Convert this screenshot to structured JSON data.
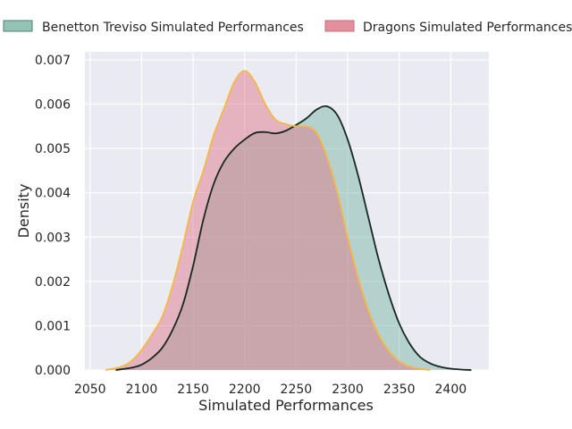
{
  "chart_data": {
    "type": "area",
    "xlabel": "Simulated Performances",
    "ylabel": "Density",
    "xlim": [
      2045,
      2437
    ],
    "ylim": [
      0,
      0.00718
    ],
    "xticks": [
      2050,
      2100,
      2150,
      2200,
      2250,
      2300,
      2350,
      2400
    ],
    "yticks": [
      0,
      0.001,
      0.002,
      0.003,
      0.004,
      0.005,
      0.006,
      0.007
    ],
    "xtick_labels": [
      "2050",
      "2100",
      "2150",
      "2200",
      "2250",
      "2300",
      "2350",
      "2400"
    ],
    "ytick_labels": [
      "0.000",
      "0.001",
      "0.002",
      "0.003",
      "0.004",
      "0.005",
      "0.006",
      "0.007"
    ],
    "grid": true,
    "legend_placement": "top, above plot",
    "series": [
      {
        "name": "Benetton Treviso Simulated Performances",
        "fill_color": "#7fb8a8",
        "line_color": "#16281f",
        "x": [
          2075,
          2090,
          2100,
          2110,
          2120,
          2130,
          2140,
          2150,
          2160,
          2170,
          2180,
          2190,
          2200,
          2210,
          2220,
          2230,
          2240,
          2250,
          2260,
          2270,
          2280,
          2290,
          2300,
          2310,
          2320,
          2330,
          2340,
          2350,
          2360,
          2370,
          2380,
          2390,
          2400,
          2410,
          2420
        ],
        "y": [
          0.0,
          5e-05,
          0.00012,
          0.00027,
          0.0005,
          0.0009,
          0.00147,
          0.00235,
          0.0034,
          0.0042,
          0.0047,
          0.005,
          0.0052,
          0.00535,
          0.00537,
          0.00534,
          0.0054,
          0.00553,
          0.00568,
          0.00588,
          0.00595,
          0.00575,
          0.0052,
          0.0044,
          0.00345,
          0.0025,
          0.0017,
          0.00105,
          0.0006,
          0.0003,
          0.00015,
          7e-05,
          3e-05,
          1e-05,
          0.0
        ]
      },
      {
        "name": "Dragons Simulated Performances",
        "fill_color": "#dd7c8c",
        "line_color": "#f5b942",
        "x": [
          2065,
          2080,
          2090,
          2100,
          2110,
          2120,
          2130,
          2140,
          2150,
          2160,
          2170,
          2180,
          2190,
          2200,
          2210,
          2220,
          2230,
          2240,
          2250,
          2260,
          2270,
          2280,
          2290,
          2300,
          2310,
          2320,
          2330,
          2340,
          2350,
          2360,
          2370,
          2380
        ],
        "y": [
          0.0,
          7e-05,
          0.0002,
          0.00045,
          0.0008,
          0.0012,
          0.0019,
          0.0028,
          0.0038,
          0.0045,
          0.0053,
          0.0059,
          0.0065,
          0.00675,
          0.0065,
          0.006,
          0.00565,
          0.00555,
          0.0055,
          0.0055,
          0.00535,
          0.0048,
          0.004,
          0.003,
          0.0021,
          0.00135,
          0.0008,
          0.00043,
          0.0002,
          8e-05,
          3e-05,
          0.0
        ]
      }
    ]
  }
}
